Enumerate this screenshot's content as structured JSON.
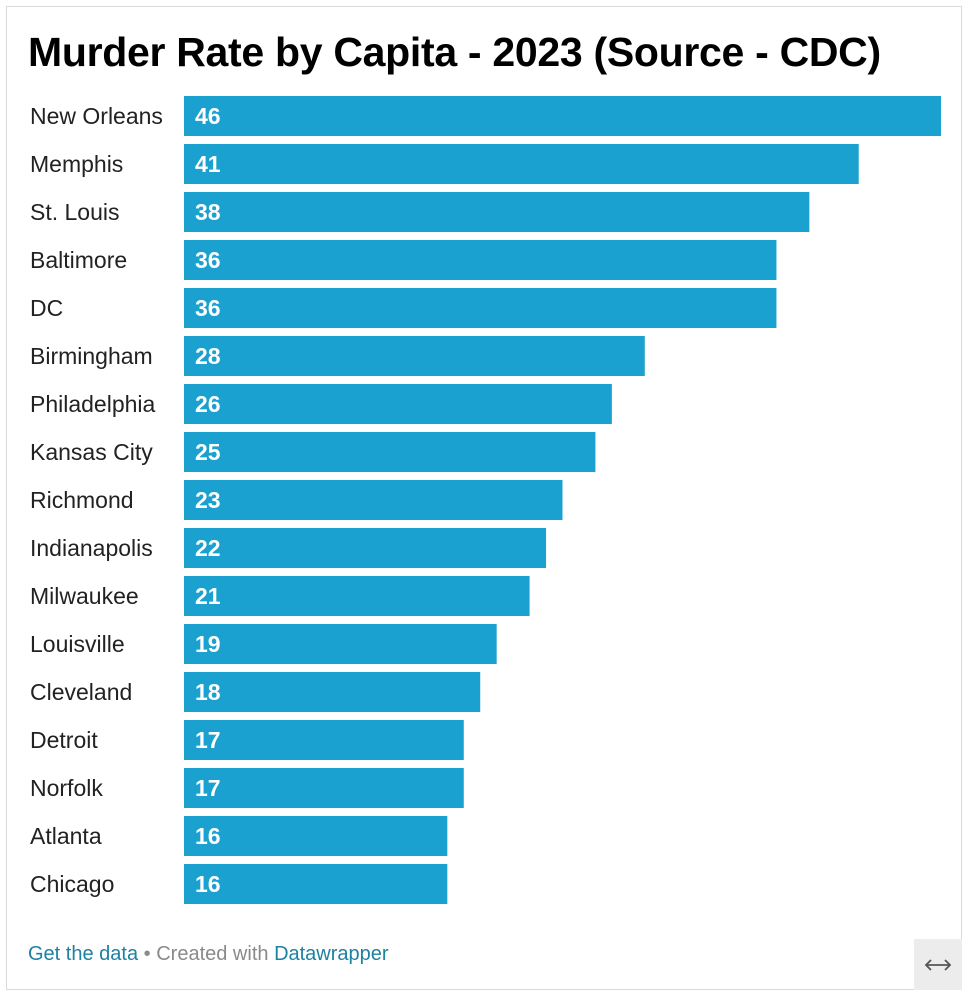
{
  "colors": {
    "bar": "#1ba1cf",
    "link": "#1d81a2"
  },
  "chart_data": {
    "type": "bar",
    "orientation": "horizontal",
    "title": "Murder Rate by Capita - 2023 (Source - CDC)",
    "categories": [
      "New Orleans",
      "Memphis",
      "St. Louis",
      "Baltimore",
      "DC",
      "Birmingham",
      "Philadelphia",
      "Kansas City",
      "Richmond",
      "Indianapolis",
      "Milwaukee",
      "Louisville",
      "Cleveland",
      "Detroit",
      "Norfolk",
      "Atlanta",
      "Chicago"
    ],
    "values": [
      46,
      41,
      38,
      36,
      36,
      28,
      26,
      25,
      23,
      22,
      21,
      19,
      18,
      17,
      17,
      16,
      16
    ],
    "xlim": [
      0,
      46
    ],
    "grid": false,
    "legend": "none"
  },
  "footer": {
    "get_data_label": "Get the data",
    "separator": "•",
    "created_with": "Created with",
    "datawrapper_label": "Datawrapper"
  },
  "expand_icon": "horizontal-resize-arrow"
}
